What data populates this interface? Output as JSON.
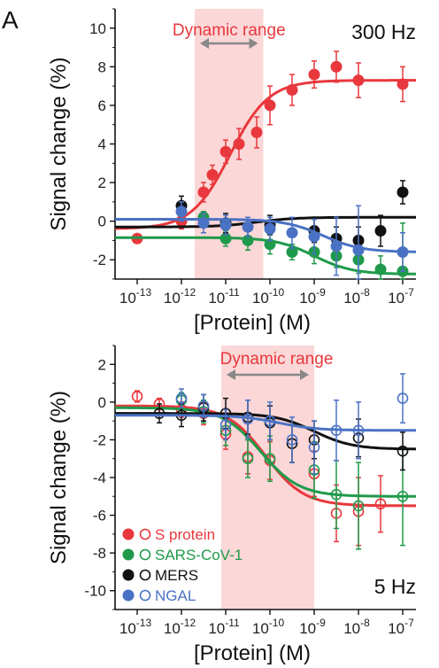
{
  "figure": {
    "panel_label": "A"
  },
  "chart_data": [
    {
      "type": "scatter",
      "xlabel": "[Protein] (M)",
      "ylabel": "Signal change (%)",
      "x_scale": "log",
      "xlim_exp": [
        -13.5,
        -6.7
      ],
      "ylim": [
        -3,
        11
      ],
      "xtick_exponents": [
        -13,
        -12,
        -11,
        -10,
        -9,
        -8,
        -7
      ],
      "xtick_base": "10",
      "yticks": [
        -2,
        0,
        2,
        4,
        6,
        8,
        10
      ],
      "annotation": "300 Hz",
      "dynamic_range": {
        "label": "Dynamic range",
        "from_exp": -11.7,
        "to_exp": -10.15
      },
      "marker": "filled",
      "series": [
        {
          "name": "S protein",
          "color": "#e8383d",
          "points": [
            [
              -13,
              -0.9
            ],
            [
              -12,
              0.0
            ],
            [
              -11.5,
              1.5
            ],
            [
              -11.3,
              2.4
            ],
            [
              -11,
              3.6
            ],
            [
              -10.7,
              4.0
            ],
            [
              -10.3,
              4.6
            ],
            [
              -10,
              6.0
            ],
            [
              -9.5,
              6.8
            ],
            [
              -9,
              7.6
            ],
            [
              -8.5,
              8.0
            ],
            [
              -8,
              7.3
            ],
            [
              -7,
              7.1
            ]
          ],
          "errors": [
            0.2,
            0.4,
            0.5,
            0.5,
            0.6,
            0.8,
            0.8,
            1.0,
            0.8,
            0.7,
            0.8,
            0.9,
            0.9
          ],
          "fit": {
            "bottom": -0.4,
            "top": 7.3,
            "ec50_exp": -10.9,
            "slope": 1.0
          }
        },
        {
          "name": "SARS-CoV-1",
          "color": "#1f9a4a",
          "points": [
            [
              -11.5,
              0.2
            ],
            [
              -11,
              -0.9
            ],
            [
              -10.5,
              -1.0
            ],
            [
              -10,
              -1.2
            ],
            [
              -9.5,
              -1.6
            ],
            [
              -9,
              -1.6
            ],
            [
              -8.5,
              -1.8
            ],
            [
              -8,
              -2.0
            ],
            [
              -7.5,
              -2.5
            ],
            [
              -7,
              -2.6
            ]
          ],
          "errors": [
            0.3,
            0.4,
            0.5,
            0.5,
            0.4,
            0.6,
            0.6,
            0.7,
            0.7,
            2.5
          ],
          "fit": {
            "bottom": -0.85,
            "top": -2.75,
            "ec50_exp": -9.0,
            "slope": 1.0
          }
        },
        {
          "name": "MERS",
          "color": "#111111",
          "points": [
            [
              -12,
              0.8
            ],
            [
              -11,
              -0.1
            ],
            [
              -10,
              -0.2
            ],
            [
              -9,
              -0.5
            ],
            [
              -8.5,
              -0.9
            ],
            [
              -8,
              -1.0
            ],
            [
              -7.5,
              -0.5
            ],
            [
              -7,
              1.5
            ]
          ],
          "errors": [
            0.5,
            0.5,
            0.5,
            0.6,
            0.6,
            0.7,
            0.8,
            0.6
          ],
          "fit": {
            "bottom": -0.3,
            "top": 0.2,
            "ec50_exp": -10.3,
            "slope": 1.0
          }
        },
        {
          "name": "NGAL",
          "color": "#4a72c4",
          "points": [
            [
              -12,
              0.5
            ],
            [
              -11.5,
              -0.1
            ],
            [
              -11,
              -0.2
            ],
            [
              -10.5,
              -0.3
            ],
            [
              -10,
              -0.4
            ],
            [
              -9.5,
              -0.6
            ],
            [
              -9,
              -0.8
            ],
            [
              -8.5,
              -1.3
            ],
            [
              -8,
              -1.5
            ],
            [
              -7,
              -1.6
            ]
          ],
          "errors": [
            0.5,
            0.5,
            0.5,
            0.5,
            0.6,
            0.8,
            0.9,
            1.5,
            2.3,
            1.0
          ],
          "fit": {
            "bottom": 0.1,
            "top": -1.6,
            "ec50_exp": -8.8,
            "slope": 1.0
          }
        }
      ]
    },
    {
      "type": "scatter",
      "xlabel": "[Protein] (M)",
      "ylabel": "Signal change (%)",
      "x_scale": "log",
      "xlim_exp": [
        -13.5,
        -6.7
      ],
      "ylim": [
        -11,
        3
      ],
      "xtick_exponents": [
        -13,
        -12,
        -11,
        -10,
        -9,
        -8,
        -7
      ],
      "xtick_base": "10",
      "yticks": [
        -10,
        -8,
        -6,
        -4,
        -2,
        0,
        2
      ],
      "annotation": "5 Hz",
      "dynamic_range": {
        "label": "Dynamic range",
        "from_exp": -11.1,
        "to_exp": -9.0
      },
      "marker": "open",
      "legend": {
        "placement": "bottom-left"
      },
      "series": [
        {
          "name": "S protein",
          "color": "#e8383d",
          "points": [
            [
              -13,
              0.3
            ],
            [
              -12.5,
              -0.1
            ],
            [
              -12,
              -0.4
            ],
            [
              -11.5,
              -0.6
            ],
            [
              -11,
              -1.7
            ],
            [
              -10.5,
              -2.9
            ],
            [
              -10,
              -3.1
            ],
            [
              -9,
              -3.8
            ],
            [
              -8.5,
              -5.9
            ],
            [
              -8,
              -5.8
            ],
            [
              -7.5,
              -5.4
            ]
          ],
          "errors": [
            0.3,
            0.3,
            0.4,
            0.6,
            0.8,
            0.9,
            1.0,
            1.2,
            1.5,
            1.8,
            1.5
          ],
          "fit": {
            "bottom": -0.2,
            "top": -5.5,
            "ec50_exp": -10.1,
            "slope": 1.0
          }
        },
        {
          "name": "SARS-CoV-1",
          "color": "#1f9a4a",
          "points": [
            [
              -12,
              0.1
            ],
            [
              -11.5,
              -0.5
            ],
            [
              -11,
              -1.5
            ],
            [
              -10.5,
              -3.0
            ],
            [
              -10,
              -3.0
            ],
            [
              -9,
              -3.6
            ],
            [
              -8.5,
              -4.9
            ],
            [
              -8,
              -5.5
            ],
            [
              -7,
              -5.0
            ]
          ],
          "errors": [
            0.4,
            0.6,
            0.8,
            1.0,
            1.2,
            1.5,
            1.8,
            2.3,
            2.6
          ],
          "fit": {
            "bottom": -0.3,
            "top": -5.0,
            "ec50_exp": -10.2,
            "slope": 1.0
          }
        },
        {
          "name": "MERS",
          "color": "#111111",
          "points": [
            [
              -12.5,
              -0.6
            ],
            [
              -12,
              -0.7
            ],
            [
              -11.5,
              -0.3
            ],
            [
              -11,
              -0.6
            ],
            [
              -10.5,
              -0.8
            ],
            [
              -10,
              -1.1
            ],
            [
              -9.5,
              -2.2
            ],
            [
              -9,
              -2.0
            ],
            [
              -8,
              -1.9
            ],
            [
              -7,
              -2.6
            ]
          ],
          "errors": [
            0.5,
            0.6,
            0.7,
            0.8,
            0.9,
            0.9,
            1.0,
            1.0,
            1.0,
            1.0
          ],
          "fit": {
            "bottom": -0.6,
            "top": -2.5,
            "ec50_exp": -9.0,
            "slope": 1.0
          }
        },
        {
          "name": "NGAL",
          "color": "#4a72c4",
          "points": [
            [
              -12,
              0.2
            ],
            [
              -11.5,
              -0.2
            ],
            [
              -11,
              -1.2
            ],
            [
              -10.5,
              -0.9
            ],
            [
              -10,
              -1.0
            ],
            [
              -9.5,
              -2.0
            ],
            [
              -9,
              -2.4
            ],
            [
              -8.5,
              -1.5
            ],
            [
              -8,
              -1.5
            ],
            [
              -7,
              0.2
            ]
          ],
          "errors": [
            0.5,
            0.6,
            0.8,
            1.0,
            1.0,
            1.2,
            1.4,
            1.6,
            1.5,
            1.3
          ],
          "fit": {
            "bottom": -0.7,
            "top": -1.5,
            "ec50_exp": -9.8,
            "slope": 1.0
          }
        }
      ]
    }
  ]
}
